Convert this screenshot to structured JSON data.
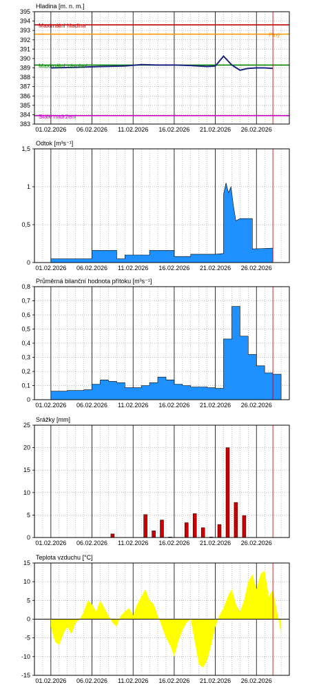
{
  "x_date_labels": [
    "01.02.2026",
    "06.02.2026",
    "11.02.2026",
    "16.02.2026",
    "21.02.2026",
    "26.02.2026"
  ],
  "chart_data": [
    {
      "type": "line",
      "title": "Hladina [m. n. m.]",
      "xlabel": "",
      "ylabel": "",
      "x_range": [
        "2026-01-30",
        "2026-03-02"
      ],
      "ylim": [
        383,
        395
      ],
      "y_ticks": [
        383,
        384,
        385,
        386,
        387,
        388,
        389,
        390,
        391,
        392,
        393,
        394,
        395
      ],
      "now_marker": "2026-02-28",
      "reference_lines": [
        {
          "name": "Maximální hladina",
          "value": 393.6,
          "color": "#c00000"
        },
        {
          "name": "Plný",
          "value": 392.6,
          "color": "#ff9900"
        },
        {
          "name": "Maximální zásobní",
          "value": 389.3,
          "color": "#008000"
        },
        {
          "name": "Stálé nadržení",
          "value": 383.9,
          "color": "#cc00cc"
        }
      ],
      "series": [
        {
          "color": "#1a237e",
          "points": [
            [
              "2026-02-01",
              389.0
            ],
            [
              "2026-02-04",
              389.05
            ],
            [
              "2026-02-07",
              389.15
            ],
            [
              "2026-02-10",
              389.2
            ],
            [
              "2026-02-12",
              389.35
            ],
            [
              "2026-02-14",
              389.3
            ],
            [
              "2026-02-16",
              389.3
            ],
            [
              "2026-02-18",
              389.25
            ],
            [
              "2026-02-20",
              389.15
            ],
            [
              "2026-02-21",
              389.2
            ],
            [
              "2026-02-22",
              390.25
            ],
            [
              "2026-02-23",
              389.3
            ],
            [
              "2026-02-24",
              388.75
            ],
            [
              "2026-02-25",
              388.95
            ],
            [
              "2026-02-26",
              389.0
            ],
            [
              "2026-02-27",
              389.0
            ],
            [
              "2026-02-28",
              388.95
            ]
          ]
        }
      ]
    },
    {
      "type": "area",
      "title": "Odtok [m³s⁻¹]",
      "xlabel": "",
      "ylabel": "",
      "x_range": [
        "2026-01-30",
        "2026-03-02"
      ],
      "ylim": [
        0,
        1.5
      ],
      "y_ticks": [
        0,
        0.5,
        1,
        1.5
      ],
      "y_tick_labels": [
        "0",
        "0,5",
        "1",
        "1,5"
      ],
      "now_marker": "2026-02-28",
      "color": "#1e90ff",
      "points": [
        [
          "2026-02-01",
          0.05
        ],
        [
          "2026-02-06",
          0.05
        ],
        [
          "2026-02-06",
          0.16
        ],
        [
          "2026-02-09",
          0.16
        ],
        [
          "2026-02-09",
          0.05
        ],
        [
          "2026-02-10",
          0.05
        ],
        [
          "2026-02-10",
          0.1
        ],
        [
          "2026-02-13",
          0.1
        ],
        [
          "2026-02-13",
          0.16
        ],
        [
          "2026-02-16",
          0.16
        ],
        [
          "2026-02-16",
          0.08
        ],
        [
          "2026-02-18",
          0.08
        ],
        [
          "2026-02-18",
          0.11
        ],
        [
          "2026-02-21",
          0.11
        ],
        [
          "2026-02-22",
          0.12
        ],
        [
          "2026-02-22",
          0.9
        ],
        [
          "2026-02-22.3",
          1.05
        ],
        [
          "2026-02-22.6",
          0.92
        ],
        [
          "2026-02-22.9",
          1.0
        ],
        [
          "2026-02-23.2",
          0.75
        ],
        [
          "2026-02-23.5",
          0.55
        ],
        [
          "2026-02-24",
          0.58
        ],
        [
          "2026-02-25.5",
          0.58
        ],
        [
          "2026-02-25.5",
          0.18
        ],
        [
          "2026-02-28",
          0.19
        ]
      ]
    },
    {
      "type": "area",
      "title": "Průměrná bilanční hodnota přítoku [m³s⁻¹]",
      "xlabel": "",
      "ylabel": "",
      "x_range": [
        "2026-01-30",
        "2026-03-02"
      ],
      "ylim": [
        0,
        0.8
      ],
      "y_ticks": [
        0,
        0.1,
        0.2,
        0.3,
        0.4,
        0.5,
        0.6,
        0.7,
        0.8
      ],
      "y_tick_labels": [
        "0",
        "0,1",
        "0,2",
        "0,3",
        "0,4",
        "0,5",
        "0,6",
        "0,7",
        "0,8"
      ],
      "now_marker": "2026-02-28",
      "color": "#1e90ff",
      "daily_values": [
        [
          "2026-02-01",
          0.06
        ],
        [
          "2026-02-02",
          0.06
        ],
        [
          "2026-02-03",
          0.065
        ],
        [
          "2026-02-04",
          0.065
        ],
        [
          "2026-02-05",
          0.07
        ],
        [
          "2026-02-06",
          0.11
        ],
        [
          "2026-02-07",
          0.14
        ],
        [
          "2026-02-08",
          0.13
        ],
        [
          "2026-02-09",
          0.12
        ],
        [
          "2026-02-10",
          0.085
        ],
        [
          "2026-02-11",
          0.085
        ],
        [
          "2026-02-12",
          0.1
        ],
        [
          "2026-02-13",
          0.12
        ],
        [
          "2026-02-14",
          0.16
        ],
        [
          "2026-02-15",
          0.14
        ],
        [
          "2026-02-16",
          0.11
        ],
        [
          "2026-02-17",
          0.1
        ],
        [
          "2026-02-18",
          0.09
        ],
        [
          "2026-02-19",
          0.09
        ],
        [
          "2026-02-20",
          0.085
        ],
        [
          "2026-02-21",
          0.08
        ],
        [
          "2026-02-22",
          0.43
        ],
        [
          "2026-02-23",
          0.66
        ],
        [
          "2026-02-24",
          0.45
        ],
        [
          "2026-02-25",
          0.32
        ],
        [
          "2026-02-26",
          0.24
        ],
        [
          "2026-02-27",
          0.19
        ],
        [
          "2026-02-28",
          0.18
        ]
      ]
    },
    {
      "type": "bar",
      "title": "Srážky [mm]",
      "xlabel": "",
      "ylabel": "",
      "x_range": [
        "2026-01-30",
        "2026-03-02"
      ],
      "ylim": [
        0,
        25
      ],
      "y_ticks": [
        0,
        5,
        10,
        15,
        20,
        25
      ],
      "now_marker": "2026-02-28",
      "color": "#cc0000",
      "bars": [
        [
          "2026-02-08",
          0.8
        ],
        [
          "2026-02-12",
          5.1
        ],
        [
          "2026-02-13",
          1.5
        ],
        [
          "2026-02-14",
          3.9
        ],
        [
          "2026-02-15",
          0.1
        ],
        [
          "2026-02-17",
          3.3
        ],
        [
          "2026-02-18",
          5.3
        ],
        [
          "2026-02-19",
          2.2
        ],
        [
          "2026-02-20",
          0.1
        ],
        [
          "2026-02-21",
          2.9
        ],
        [
          "2026-02-22",
          20.0
        ],
        [
          "2026-02-23",
          7.8
        ],
        [
          "2026-02-24",
          4.9
        ]
      ]
    },
    {
      "type": "area",
      "title": "Teplota vzduchu [°C]",
      "xlabel": "",
      "ylabel": "",
      "x_range": [
        "2026-01-30",
        "2026-03-02"
      ],
      "ylim": [
        -15,
        15
      ],
      "y_ticks": [
        -15,
        -10,
        -5,
        0,
        5,
        10,
        15
      ],
      "now_marker": "2026-02-28",
      "color": "#ffff00",
      "points": [
        [
          "2026-02-01",
          -2
        ],
        [
          "2026-02-01.5",
          -6
        ],
        [
          "2026-02-02",
          -7
        ],
        [
          "2026-02-02.5",
          -4
        ],
        [
          "2026-02-03",
          -2
        ],
        [
          "2026-02-03.5",
          -4
        ],
        [
          "2026-02-04",
          -1
        ],
        [
          "2026-02-04.5",
          0
        ],
        [
          "2026-02-05",
          2
        ],
        [
          "2026-02-05.5",
          5
        ],
        [
          "2026-02-06",
          4
        ],
        [
          "2026-02-06.5",
          2
        ],
        [
          "2026-02-07",
          5
        ],
        [
          "2026-02-07.5",
          3
        ],
        [
          "2026-02-08",
          1
        ],
        [
          "2026-02-08.5",
          -1
        ],
        [
          "2026-02-09",
          -2
        ],
        [
          "2026-02-09.5",
          1
        ],
        [
          "2026-02-10",
          2
        ],
        [
          "2026-02-10.5",
          3
        ],
        [
          "2026-02-11",
          1
        ],
        [
          "2026-02-11.5",
          4
        ],
        [
          "2026-02-12",
          6
        ],
        [
          "2026-02-12.5",
          8
        ],
        [
          "2026-02-13",
          5
        ],
        [
          "2026-02-13.5",
          4
        ],
        [
          "2026-02-14",
          1
        ],
        [
          "2026-02-14.5",
          -2
        ],
        [
          "2026-02-15",
          -5
        ],
        [
          "2026-02-15.5",
          -7
        ],
        [
          "2026-02-16",
          -10
        ],
        [
          "2026-02-16.5",
          -6
        ],
        [
          "2026-02-17",
          -3
        ],
        [
          "2026-02-17.5",
          -1
        ],
        [
          "2026-02-18",
          0
        ],
        [
          "2026-02-18.5",
          -6
        ],
        [
          "2026-02-19",
          -12
        ],
        [
          "2026-02-19.5",
          -13
        ],
        [
          "2026-02-20",
          -11
        ],
        [
          "2026-02-20.5",
          -7
        ],
        [
          "2026-02-21",
          -2
        ],
        [
          "2026-02-21.5",
          1
        ],
        [
          "2026-02-22",
          3
        ],
        [
          "2026-02-22.5",
          6
        ],
        [
          "2026-02-23",
          8
        ],
        [
          "2026-02-23.5",
          4
        ],
        [
          "2026-02-24",
          2
        ],
        [
          "2026-02-24.5",
          5
        ],
        [
          "2026-02-25",
          10
        ],
        [
          "2026-02-25.5",
          12
        ],
        [
          "2026-02-26",
          8
        ],
        [
          "2026-02-26.5",
          12
        ],
        [
          "2026-02-27",
          13
        ],
        [
          "2026-02-27.5",
          6
        ],
        [
          "2026-02-28",
          8
        ],
        [
          "2026-02-28.5",
          2
        ],
        [
          "2026-02-29",
          -4
        ]
      ]
    }
  ]
}
